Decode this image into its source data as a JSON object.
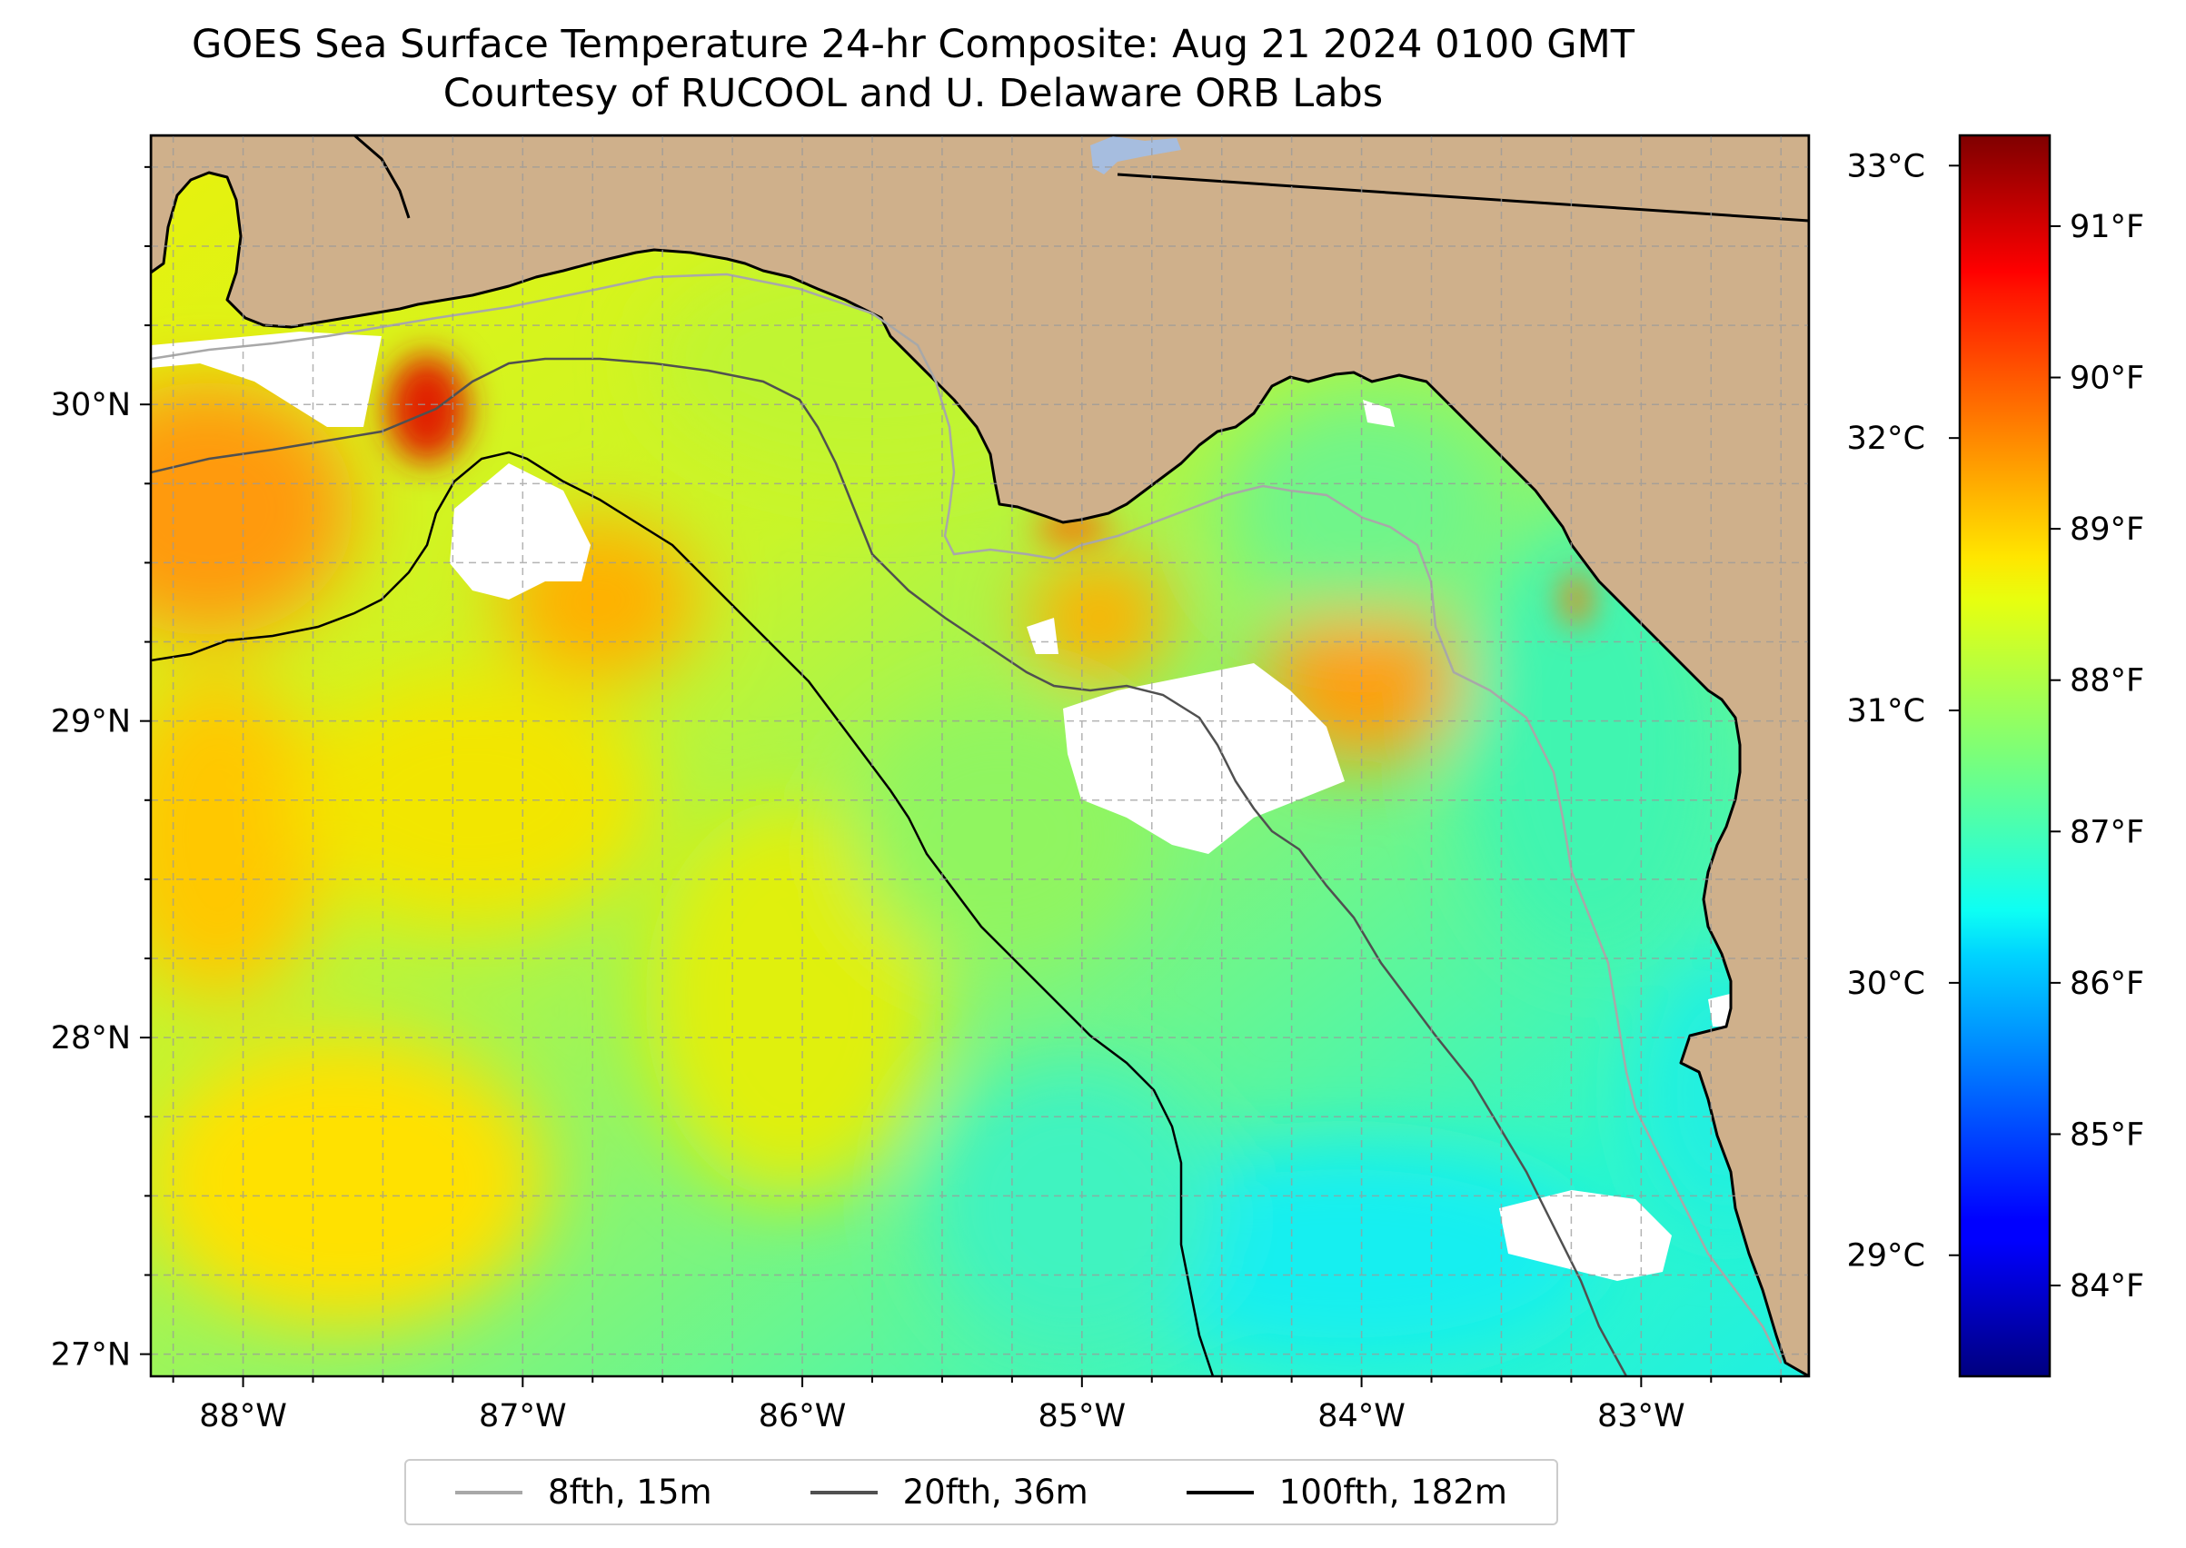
{
  "title": {
    "line1": "GOES Sea Surface Temperature 24-hr Composite: Aug 21 2024 0100 GMT",
    "line2": "Courtesy of RUCOOL and U. Delaware ORB Labs"
  },
  "map": {
    "lon_range": [
      -88.33,
      -82.4
    ],
    "lat_range": [
      26.93,
      30.85
    ],
    "lon_labels": [
      "88°W",
      "87°W",
      "86°W",
      "85°W",
      "84°W",
      "83°W"
    ],
    "lon_values": [
      -88,
      -87,
      -86,
      -85,
      -84,
      -83
    ],
    "lat_labels": [
      "27°N",
      "28°N",
      "29°N",
      "30°N"
    ],
    "lat_values": [
      27,
      28,
      29,
      30
    ],
    "gridlines": "dashed gray every 0.25°",
    "land_color": "#cfb08b",
    "missing_data_color": "#ffffff"
  },
  "colorbar": {
    "colormap": "jet",
    "celsius_labels": [
      "29°C",
      "30°C",
      "31°C",
      "32°C",
      "33°C"
    ],
    "celsius_values": [
      29,
      30,
      31,
      32,
      33
    ],
    "fahrenheit_labels": [
      "84°F",
      "85°F",
      "86°F",
      "87°F",
      "88°F",
      "89°F",
      "90°F",
      "91°F"
    ],
    "fahrenheit_values": [
      84,
      85,
      86,
      87,
      88,
      89,
      90,
      91
    ],
    "range_f": [
      83.4,
      91.6
    ]
  },
  "legend": {
    "items": [
      {
        "label": "8fth, 15m",
        "color": "#a8a8a8"
      },
      {
        "label": "20fth, 36m",
        "color": "#505050"
      },
      {
        "label": "100fth, 182m",
        "color": "#000000"
      }
    ]
  }
}
